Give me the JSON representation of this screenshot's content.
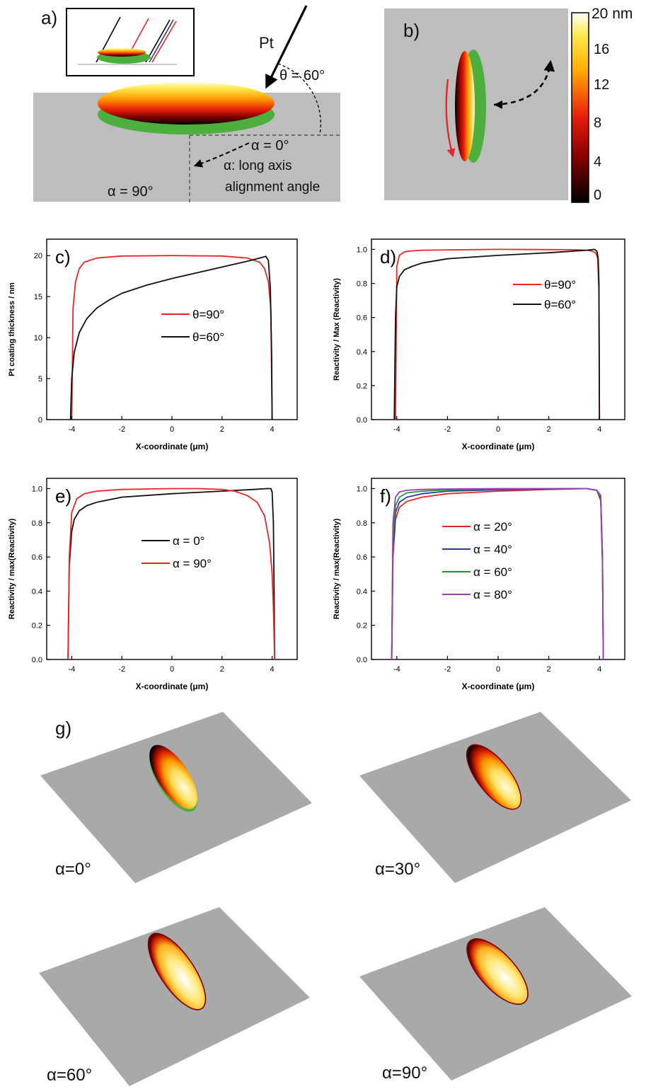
{
  "panel_a": {
    "label": "a)",
    "pt_label": "Pt",
    "theta_label": "θ = 60°",
    "alpha0_label": "α = 0°",
    "alpha_desc_1": "α: long axis",
    "alpha_desc_2": "alignment angle",
    "alpha90_label": "α = 90°",
    "colors": {
      "substrate": "#bdbdbd",
      "uncoated": "#4caf3e"
    }
  },
  "panel_b": {
    "label": "b)",
    "colorbar": {
      "unit_label": "20 nm",
      "ticks": [
        "16",
        "12",
        "8",
        "4",
        "0"
      ]
    }
  },
  "chart_data": [
    {
      "panel": "c)",
      "type": "line",
      "xlabel": "X-coordinate (μm)",
      "ylabel": "Pt coating thickness / nm",
      "xlim": [
        -5,
        5
      ],
      "ylim": [
        0,
        22
      ],
      "xticks": [
        "-4",
        "-2",
        "0",
        "2",
        "4"
      ],
      "yticks": [
        "0",
        "5",
        "10",
        "15",
        "20"
      ],
      "legend_position": "center-right",
      "series": [
        {
          "name": "θ=90°",
          "color": "#e8262a",
          "x": [
            -4.0,
            -3.95,
            -3.85,
            -3.7,
            -3.5,
            -3.0,
            -2.0,
            0.0,
            2.0,
            3.0,
            3.5,
            3.7,
            3.85,
            3.95,
            4.0
          ],
          "y": [
            0,
            13.5,
            16.8,
            18.4,
            19.2,
            19.7,
            19.95,
            20.0,
            19.95,
            19.7,
            19.2,
            18.4,
            16.8,
            13.5,
            0
          ]
        },
        {
          "name": "θ=60°",
          "color": "#111111",
          "x": [
            -4.05,
            -4.0,
            -3.9,
            -3.7,
            -3.4,
            -3.0,
            -2.5,
            -2.0,
            -1.0,
            0.0,
            1.0,
            2.0,
            3.0,
            3.5,
            3.75,
            3.85,
            3.93,
            3.98,
            4.0
          ],
          "y": [
            0,
            5.0,
            8.2,
            10.6,
            12.3,
            13.6,
            14.6,
            15.4,
            16.4,
            17.2,
            17.9,
            18.6,
            19.3,
            19.7,
            19.9,
            19.4,
            16.0,
            8.0,
            0
          ]
        }
      ]
    },
    {
      "panel": "d)",
      "type": "line",
      "xlabel": "X-coordinate (μm)",
      "ylabel": "Reactivity / Max (Reactivity)",
      "xlim": [
        -5,
        5
      ],
      "ylim": [
        0,
        1.06
      ],
      "xticks": [
        "-4",
        "-2",
        "0",
        "2",
        "4"
      ],
      "yticks": [
        "0.0",
        "0.2",
        "0.4",
        "0.6",
        "0.8",
        "1.0"
      ],
      "legend_position": "top-right",
      "series": [
        {
          "name": "θ=90°",
          "color": "#e8262a",
          "x": [
            -4.05,
            -4.0,
            -3.9,
            -3.7,
            -3.5,
            -3.0,
            0.0,
            3.0,
            3.5,
            3.7,
            3.85,
            3.93,
            3.98,
            4.0
          ],
          "y": [
            0,
            0.9,
            0.965,
            0.985,
            0.99,
            0.995,
            1.0,
            0.998,
            0.995,
            0.99,
            0.98,
            0.95,
            0.75,
            0
          ]
        },
        {
          "name": "θ=60°",
          "color": "#111111",
          "x": [
            -4.1,
            -4.05,
            -4.0,
            -3.9,
            -3.7,
            -3.4,
            -3.0,
            -2.0,
            0.0,
            2.0,
            3.0,
            3.5,
            3.8,
            3.9,
            3.95,
            3.98,
            4.0
          ],
          "y": [
            0,
            0.6,
            0.78,
            0.84,
            0.88,
            0.9,
            0.92,
            0.945,
            0.965,
            0.98,
            0.99,
            0.995,
            1.0,
            0.99,
            0.95,
            0.8,
            0
          ]
        }
      ]
    },
    {
      "panel": "e)",
      "type": "line",
      "xlabel": "X-coordinate (μm)",
      "ylabel": "Reactivity / max(Reactivity)",
      "xlim": [
        -5,
        5
      ],
      "ylim": [
        0,
        1.06
      ],
      "xticks": [
        "-4",
        "-2",
        "0",
        "2",
        "4"
      ],
      "yticks": [
        "0.0",
        "0.2",
        "0.4",
        "0.6",
        "0.8",
        "1.0"
      ],
      "legend_position": "center-right",
      "series": [
        {
          "name": "α = 0°",
          "color": "#111111",
          "x": [
            -4.15,
            -4.1,
            -4.0,
            -3.9,
            -3.7,
            -3.4,
            -3.0,
            -2.0,
            0.0,
            2.0,
            3.0,
            3.5,
            3.8,
            3.95,
            4.0,
            4.05,
            4.08,
            4.1
          ],
          "y": [
            0,
            0.55,
            0.75,
            0.82,
            0.87,
            0.9,
            0.92,
            0.95,
            0.97,
            0.985,
            0.993,
            0.997,
            1.0,
            1.0,
            0.98,
            0.8,
            0.4,
            0
          ]
        },
        {
          "name": "α = 90°",
          "color": "#e8262a",
          "x": [
            -4.15,
            -4.1,
            -4.0,
            -3.8,
            -3.5,
            -3.0,
            -2.0,
            0.0,
            1.0,
            2.0,
            2.5,
            3.0,
            3.4,
            3.7,
            3.9,
            4.0,
            4.05,
            4.1
          ],
          "y": [
            0,
            0.6,
            0.86,
            0.94,
            0.97,
            0.985,
            0.995,
            1.0,
            1.0,
            0.995,
            0.985,
            0.96,
            0.92,
            0.84,
            0.68,
            0.5,
            0.3,
            0
          ]
        }
      ]
    },
    {
      "panel": "f)",
      "type": "line",
      "xlabel": "X-coordinate (μm)",
      "ylabel": "Reactivity / max(Reactivity)",
      "xlim": [
        -5,
        5
      ],
      "ylim": [
        0,
        1.06
      ],
      "xticks": [
        "-4",
        "-2",
        "0",
        "2",
        "4"
      ],
      "yticks": [
        "0.0",
        "0.2",
        "0.4",
        "0.6",
        "0.8",
        "1.0"
      ],
      "legend_position": "center",
      "series": [
        {
          "name": "α = 20°",
          "color": "#e8262a",
          "x": [
            -4.2,
            -4.15,
            -4.05,
            -3.9,
            -3.6,
            -3.0,
            -2.0,
            0.0,
            2.0,
            3.5,
            3.9,
            4.05,
            4.12,
            4.15
          ],
          "y": [
            0,
            0.6,
            0.82,
            0.89,
            0.925,
            0.95,
            0.97,
            0.985,
            0.995,
            1.0,
            0.99,
            0.93,
            0.55,
            0
          ]
        },
        {
          "name": "α = 40°",
          "color": "#2a3a9a",
          "x": [
            -4.2,
            -4.15,
            -4.05,
            -3.9,
            -3.6,
            -3.0,
            -2.0,
            0.0,
            2.0,
            3.5,
            3.9,
            4.05,
            4.12,
            4.15
          ],
          "y": [
            0,
            0.65,
            0.86,
            0.92,
            0.95,
            0.97,
            0.985,
            0.993,
            0.997,
            1.0,
            0.99,
            0.94,
            0.58,
            0
          ]
        },
        {
          "name": "α = 60°",
          "color": "#1e9a3a",
          "x": [
            -4.2,
            -4.15,
            -4.05,
            -3.9,
            -3.6,
            -3.0,
            -2.0,
            0.0,
            2.0,
            3.5,
            3.9,
            4.05,
            4.12,
            4.15
          ],
          "y": [
            0,
            0.72,
            0.9,
            0.95,
            0.975,
            0.985,
            0.993,
            0.997,
            0.999,
            1.0,
            0.99,
            0.95,
            0.6,
            0
          ]
        },
        {
          "name": "α = 80°",
          "color": "#9a3fb5",
          "x": [
            -4.2,
            -4.15,
            -4.05,
            -3.9,
            -3.6,
            -3.0,
            -2.0,
            0.0,
            2.0,
            3.5,
            3.9,
            4.05,
            4.12,
            4.15
          ],
          "y": [
            0,
            0.8,
            0.95,
            0.98,
            0.99,
            0.995,
            0.998,
            1.0,
            1.0,
            1.0,
            0.99,
            0.96,
            0.62,
            0
          ]
        }
      ]
    }
  ],
  "panel_g": {
    "label": "g)",
    "views": [
      {
        "caption": "α=0°"
      },
      {
        "caption": "α=30°"
      },
      {
        "caption": "α=60°"
      },
      {
        "caption": "α=90°"
      }
    ]
  }
}
